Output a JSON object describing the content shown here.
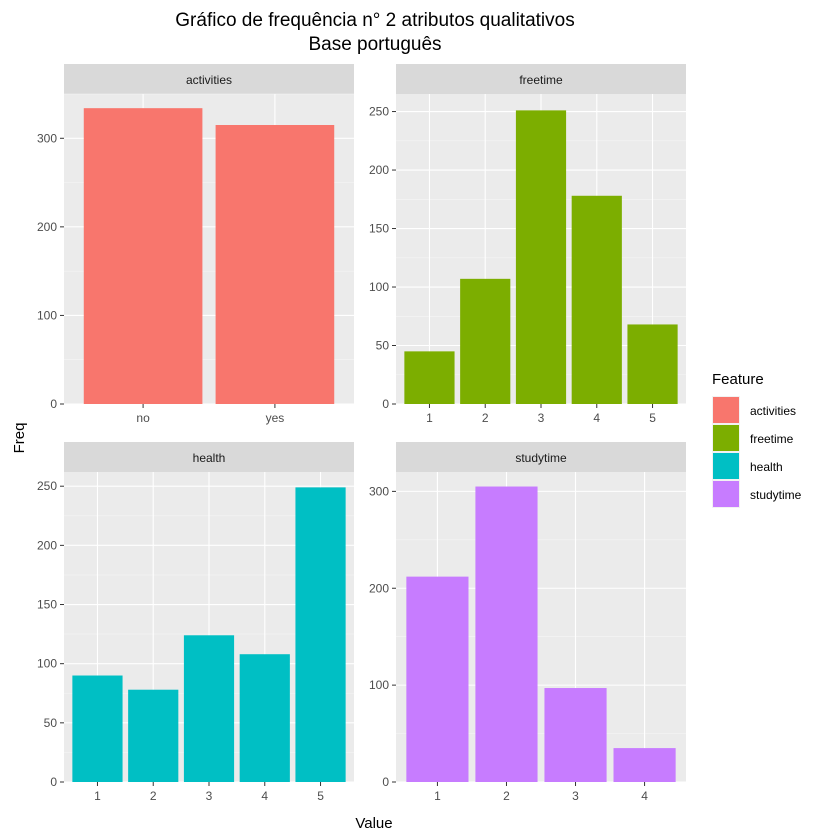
{
  "chart_data": {
    "type": "bar",
    "title": "Gráfico de frequência n° 2 atributos qualitativos",
    "subtitle": "Base português",
    "xlabel": "Value",
    "ylabel": "Freq",
    "grid": true,
    "legend": {
      "title": "Feature",
      "placement": "right",
      "entries": [
        {
          "label": "activities",
          "color": "#F8766D"
        },
        {
          "label": "freetime",
          "color": "#7CAE00"
        },
        {
          "label": "health",
          "color": "#00BFC4"
        },
        {
          "label": "studytime",
          "color": "#C77CFF"
        }
      ]
    },
    "panels": [
      {
        "name": "activities",
        "color": "#F8766D",
        "categories": [
          "no",
          "yes"
        ],
        "values": [
          334,
          315
        ],
        "ylim": [
          0,
          350
        ],
        "yticks": [
          0,
          100,
          200,
          300
        ]
      },
      {
        "name": "freetime",
        "color": "#7CAE00",
        "categories": [
          "1",
          "2",
          "3",
          "4",
          "5"
        ],
        "values": [
          45,
          107,
          251,
          178,
          68
        ],
        "ylim": [
          0,
          265
        ],
        "yticks": [
          0,
          50,
          100,
          150,
          200,
          250
        ]
      },
      {
        "name": "health",
        "color": "#00BFC4",
        "categories": [
          "1",
          "2",
          "3",
          "4",
          "5"
        ],
        "values": [
          90,
          78,
          124,
          108,
          249
        ],
        "ylim": [
          0,
          262
        ],
        "yticks": [
          0,
          50,
          100,
          150,
          200,
          250
        ]
      },
      {
        "name": "studytime",
        "color": "#C77CFF",
        "categories": [
          "1",
          "2",
          "3",
          "4"
        ],
        "values": [
          212,
          305,
          97,
          35
        ],
        "ylim": [
          0,
          320
        ],
        "yticks": [
          0,
          100,
          200,
          300
        ]
      }
    ]
  }
}
